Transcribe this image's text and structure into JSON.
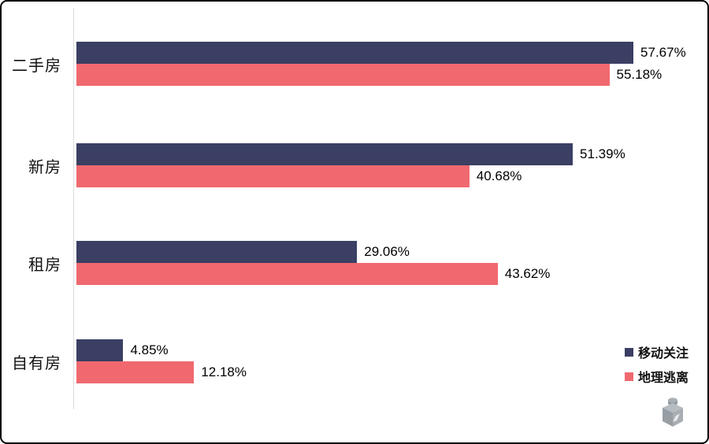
{
  "chart_data": {
    "type": "bar",
    "orientation": "horizontal",
    "title": "",
    "categories": [
      "二手房",
      "新房",
      "租房",
      "自有房"
    ],
    "series": [
      {
        "name": "移动关注",
        "color": "#3A3F63",
        "values": [
          57.67,
          51.39,
          29.06,
          4.85
        ]
      },
      {
        "name": "地理逃离",
        "color": "#F0696F",
        "values": [
          55.18,
          40.68,
          43.62,
          12.18
        ]
      }
    ],
    "value_suffix": "%",
    "value_label_format": "two_decimals",
    "xlim": [
      0,
      60
    ],
    "grid": false,
    "axis_color": "#DCDCDC",
    "legend_position": "bottom-right"
  },
  "legend": {
    "items": [
      {
        "label": "移动关注",
        "color": "#3A3F63"
      },
      {
        "label": "地理逃离",
        "color": "#F0696F"
      }
    ]
  },
  "watermark": {
    "icon": "cube-logo-icon"
  }
}
